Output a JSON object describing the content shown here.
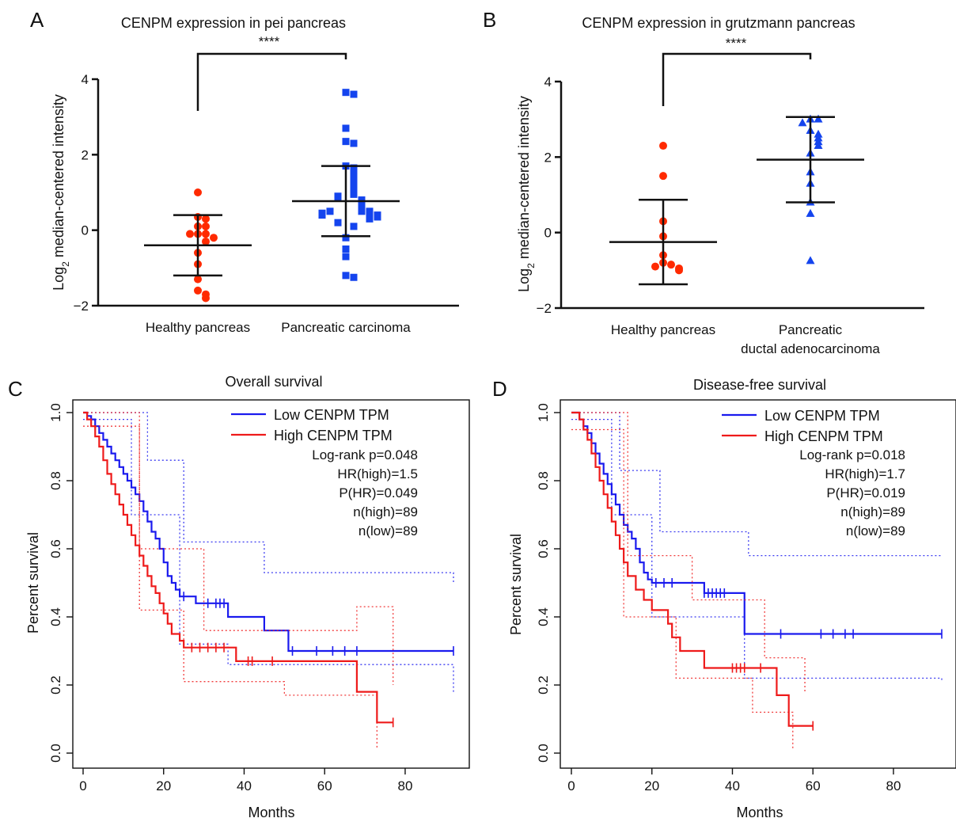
{
  "chart_data": [
    {
      "panel": "A",
      "type": "scatter",
      "title": "CENPM expression in pei pancreas",
      "ylabel_main": "Log",
      "ylabel_sub": "2",
      "ylabel_rest": " median-centered intensity",
      "yticks": [
        "−2",
        "0",
        "2",
        "4"
      ],
      "ylim": [
        -2,
        4
      ],
      "significance": "****",
      "categories": [
        "Healthy pancreas",
        "Pancreatic carcinoma"
      ],
      "series": [
        {
          "values": [
            1.0,
            0.35,
            0.3,
            0.1,
            0.1,
            -0.1,
            -0.1,
            -0.1,
            -0.2,
            -0.3,
            -0.6,
            -0.9,
            -1.3,
            -1.6,
            -1.7,
            -1.8
          ],
          "mean": -0.4,
          "sd": 0.8,
          "color": "#ff2a00",
          "marker": "circle"
        },
        {
          "values": [
            3.65,
            3.6,
            2.7,
            2.35,
            2.3,
            1.7,
            1.65,
            1.5,
            1.4,
            1.3,
            1.2,
            1.05,
            0.95,
            0.9,
            0.85,
            0.8,
            0.75,
            0.7,
            0.65,
            0.6,
            0.55,
            0.5,
            0.5,
            0.5,
            0.45,
            0.45,
            0.4,
            0.4,
            0.35,
            0.3,
            0.2,
            0.1,
            -0.2,
            -0.5,
            -0.7,
            -1.2,
            -1.25
          ],
          "mean": 0.77,
          "sd": 0.93,
          "color": "#1444ee",
          "marker": "square"
        }
      ]
    },
    {
      "panel": "B",
      "type": "scatter",
      "title": "CENPM expression in grutzmann pancreas",
      "ylabel_main": "Log",
      "ylabel_sub": "2",
      "ylabel_rest": " median-centered intensity",
      "yticks": [
        "−2",
        "0",
        "2",
        "4"
      ],
      "ylim": [
        -2,
        4
      ],
      "significance": "****",
      "categories": [
        "Healthy pancreas",
        "Pancreatic ductal adenocarcinoma"
      ],
      "category_lines": [
        [
          "Healthy pancreas"
        ],
        [
          "Pancreatic",
          "ductal adenocarcinoma"
        ]
      ],
      "series": [
        {
          "values": [
            2.3,
            1.5,
            0.3,
            -0.1,
            -0.6,
            -0.8,
            -0.85,
            -0.9,
            -0.95,
            -1.0
          ],
          "mean": -0.25,
          "sd": 1.12,
          "color": "#ff2a00",
          "marker": "circle"
        },
        {
          "values": [
            3.0,
            3.0,
            2.9,
            2.7,
            2.6,
            2.5,
            2.4,
            2.3,
            2.1,
            1.6,
            1.3,
            0.8,
            0.5,
            -0.75
          ],
          "mean": 1.93,
          "sd": 1.13,
          "color": "#1444ee",
          "marker": "triangle"
        }
      ]
    },
    {
      "panel": "C",
      "type": "line",
      "title": "Overall survival",
      "xlabel": "Months",
      "ylabel": "Percent survival",
      "xlim": [
        0,
        92
      ],
      "ylim": [
        0,
        1
      ],
      "xticks": [
        "0",
        "20",
        "40",
        "60",
        "80"
      ],
      "yticks": [
        "0.0",
        "0.2",
        "0.4",
        "0.6",
        "0.8",
        "1.0"
      ],
      "legend": [
        "Low CENPM TPM",
        "High CENPM TPM"
      ],
      "stats": [
        "Log-rank p=0.048",
        "HR(high)=1.5",
        "P(HR)=0.049",
        "n(high)=89",
        "n(low)=89"
      ],
      "series": [
        {
          "name": "Low CENPM TPM",
          "color": "#1a1aee",
          "x": [
            0,
            1,
            2,
            3,
            4,
            5,
            6,
            7,
            8,
            9,
            10,
            11,
            12,
            13,
            14,
            15,
            16,
            17,
            18,
            19,
            20,
            21,
            22,
            23,
            24,
            28,
            36,
            45,
            51,
            92
          ],
          "y": [
            1.0,
            0.99,
            0.98,
            0.96,
            0.94,
            0.92,
            0.9,
            0.88,
            0.86,
            0.84,
            0.82,
            0.8,
            0.78,
            0.76,
            0.74,
            0.71,
            0.68,
            0.65,
            0.63,
            0.6,
            0.56,
            0.52,
            0.5,
            0.48,
            0.46,
            0.44,
            0.4,
            0.36,
            0.3,
            0.3
          ],
          "censor": [
            25,
            31,
            33,
            34,
            35,
            52,
            58,
            62,
            65,
            68,
            92
          ],
          "ci_upper_y": [
            1.0,
            0.86,
            0.62,
            0.53,
            0.5
          ],
          "ci_upper_x": [
            0,
            16,
            25,
            45,
            92
          ],
          "ci_lower_y": [
            0.98,
            0.7,
            0.32,
            0.26,
            0.18
          ],
          "ci_lower_x": [
            0,
            12,
            24,
            36,
            92
          ]
        },
        {
          "name": "High CENPM TPM",
          "color": "#ee1a1a",
          "x": [
            0,
            1,
            2,
            3,
            4,
            5,
            6,
            7,
            8,
            9,
            10,
            11,
            12,
            13,
            14,
            15,
            16,
            17,
            18,
            19,
            20,
            21,
            22,
            24,
            25,
            38,
            68,
            73,
            77
          ],
          "y": [
            1.0,
            0.98,
            0.96,
            0.93,
            0.9,
            0.86,
            0.82,
            0.79,
            0.76,
            0.73,
            0.7,
            0.67,
            0.64,
            0.61,
            0.58,
            0.55,
            0.52,
            0.49,
            0.47,
            0.44,
            0.41,
            0.38,
            0.35,
            0.33,
            0.31,
            0.27,
            0.18,
            0.09,
            0.09
          ],
          "censor": [
            27,
            29,
            31,
            33,
            35,
            41,
            42,
            47,
            77
          ],
          "ci_upper_y": [
            1.0,
            0.6,
            0.36,
            0.43,
            0.2
          ],
          "ci_upper_x": [
            0,
            14,
            30,
            68,
            77
          ],
          "ci_lower_y": [
            0.96,
            0.42,
            0.21,
            0.17,
            0.01
          ],
          "ci_lower_x": [
            0,
            14,
            25,
            50,
            73
          ]
        }
      ]
    },
    {
      "panel": "D",
      "type": "line",
      "title": "Disease-free survival",
      "xlabel": "Months",
      "ylabel": "Percent survival",
      "xlim": [
        0,
        92
      ],
      "ylim": [
        0,
        1
      ],
      "xticks": [
        "0",
        "20",
        "40",
        "60",
        "80"
      ],
      "yticks": [
        "0.0",
        "0.2",
        "0.4",
        "0.6",
        "0.8",
        "1.0"
      ],
      "legend": [
        "Low CENPM TPM",
        "High CENPM TPM"
      ],
      "stats": [
        "Log-rank p=0.018",
        "HR(high)=1.7",
        "P(HR)=0.019",
        "n(high)=89",
        "n(low)=89"
      ],
      "series": [
        {
          "name": "Low CENPM TPM",
          "color": "#1a1aee",
          "x": [
            0,
            2,
            3,
            4,
            5,
            6,
            7,
            8,
            9,
            10,
            11,
            12,
            13,
            14,
            15,
            16,
            17,
            18,
            19,
            20,
            26,
            33,
            43,
            92
          ],
          "y": [
            1.0,
            0.98,
            0.96,
            0.94,
            0.91,
            0.88,
            0.85,
            0.82,
            0.79,
            0.76,
            0.73,
            0.7,
            0.67,
            0.65,
            0.63,
            0.6,
            0.56,
            0.53,
            0.51,
            0.5,
            0.5,
            0.47,
            0.35,
            0.35
          ],
          "censor": [
            21,
            23,
            25,
            33,
            34,
            35,
            36,
            37,
            38,
            52,
            62,
            65,
            68,
            70,
            92
          ],
          "ci_upper_y": [
            1.0,
            0.83,
            0.65,
            0.58,
            0.58
          ],
          "ci_upper_x": [
            0,
            12,
            22,
            44,
            92
          ],
          "ci_lower_y": [
            0.98,
            0.7,
            0.4,
            0.22,
            0.21
          ],
          "ci_lower_x": [
            0,
            10,
            20,
            43,
            92
          ]
        },
        {
          "name": "High CENPM TPM",
          "color": "#ee1a1a",
          "x": [
            0,
            2,
            3,
            4,
            5,
            6,
            7,
            8,
            9,
            10,
            11,
            12,
            13,
            14,
            16,
            18,
            20,
            24,
            25,
            27,
            33,
            44,
            51,
            54,
            60
          ],
          "y": [
            1.0,
            0.98,
            0.95,
            0.92,
            0.88,
            0.84,
            0.8,
            0.76,
            0.72,
            0.68,
            0.64,
            0.6,
            0.56,
            0.52,
            0.48,
            0.45,
            0.42,
            0.38,
            0.34,
            0.3,
            0.25,
            0.25,
            0.17,
            0.08,
            0.08
          ],
          "censor": [
            40,
            41,
            42,
            43,
            47,
            60
          ],
          "ci_upper_y": [
            1.0,
            0.58,
            0.45,
            0.28,
            0.18
          ],
          "ci_upper_x": [
            0,
            14,
            30,
            48,
            58
          ],
          "ci_lower_y": [
            0.95,
            0.4,
            0.22,
            0.12,
            0.01
          ],
          "ci_lower_x": [
            0,
            13,
            26,
            45,
            55
          ]
        }
      ]
    }
  ]
}
